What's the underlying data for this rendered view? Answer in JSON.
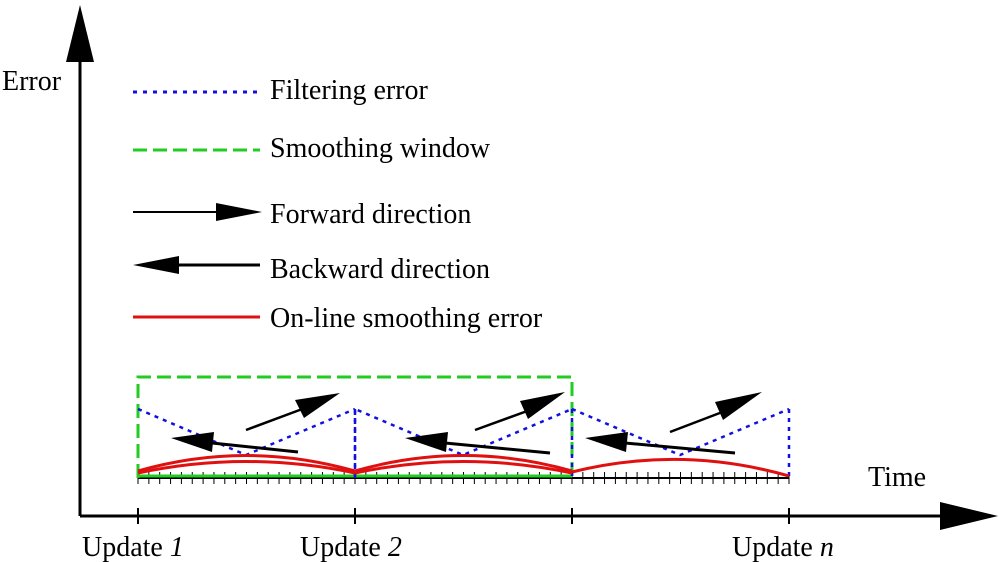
{
  "axes": {
    "y_label": "Error",
    "x_label": "Time"
  },
  "legend": [
    {
      "key": "filtering",
      "label": "Filtering error",
      "color": "#1010e0",
      "style": "dotted"
    },
    {
      "key": "window",
      "label": "Smoothing window",
      "color": "#22cc22",
      "style": "dashed"
    },
    {
      "key": "forward",
      "label": "Forward direction",
      "color": "#000000",
      "style": "arrow-right"
    },
    {
      "key": "backward",
      "label": "Backward direction",
      "color": "#000000",
      "style": "arrow-left"
    },
    {
      "key": "smoothing",
      "label": "On-line smoothing error",
      "color": "#e01010",
      "style": "solid"
    }
  ],
  "updates": [
    {
      "prefix": "Update ",
      "index": "1"
    },
    {
      "prefix": "Update ",
      "index": "2"
    },
    {
      "prefix": "Update ",
      "index": "n"
    }
  ],
  "colors": {
    "filtering": "#1010e0",
    "window": "#22cc22",
    "smoothing": "#e01010",
    "axis": "#000000"
  }
}
